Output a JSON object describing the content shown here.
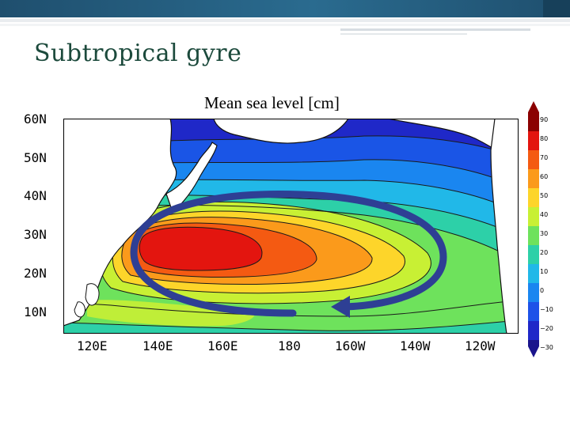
{
  "slide": {
    "title": "Subtropical gyre"
  },
  "map": {
    "title": "Mean sea level [cm]",
    "latitude_labels": [
      "60N",
      "50N",
      "40N",
      "30N",
      "20N",
      "10N"
    ],
    "longitude_labels": [
      "120E",
      "140E",
      "160E",
      "180",
      "160W",
      "140W",
      "120W"
    ],
    "region": "North Pacific Ocean",
    "arrow_description_color": "#2e3f94"
  },
  "colorbar": {
    "labels": [
      "90",
      "80",
      "70",
      "60",
      "50",
      "40",
      "30",
      "20",
      "10",
      "0",
      "−10",
      "−20",
      "−30"
    ],
    "colors": [
      "#8b0000",
      "#e3150f",
      "#f45a12",
      "#fb9a1b",
      "#fdd52a",
      "#c8f034",
      "#6ee25c",
      "#2dd0a8",
      "#21b8e8",
      "#1a86f0",
      "#1d52e8",
      "#1f28c8",
      "#1a148c"
    ]
  },
  "colors": {
    "header_bar": "#2a6b8f",
    "title_text": "#1c4a3c",
    "land": "#ffffff",
    "arrow": "#2e3f94"
  }
}
